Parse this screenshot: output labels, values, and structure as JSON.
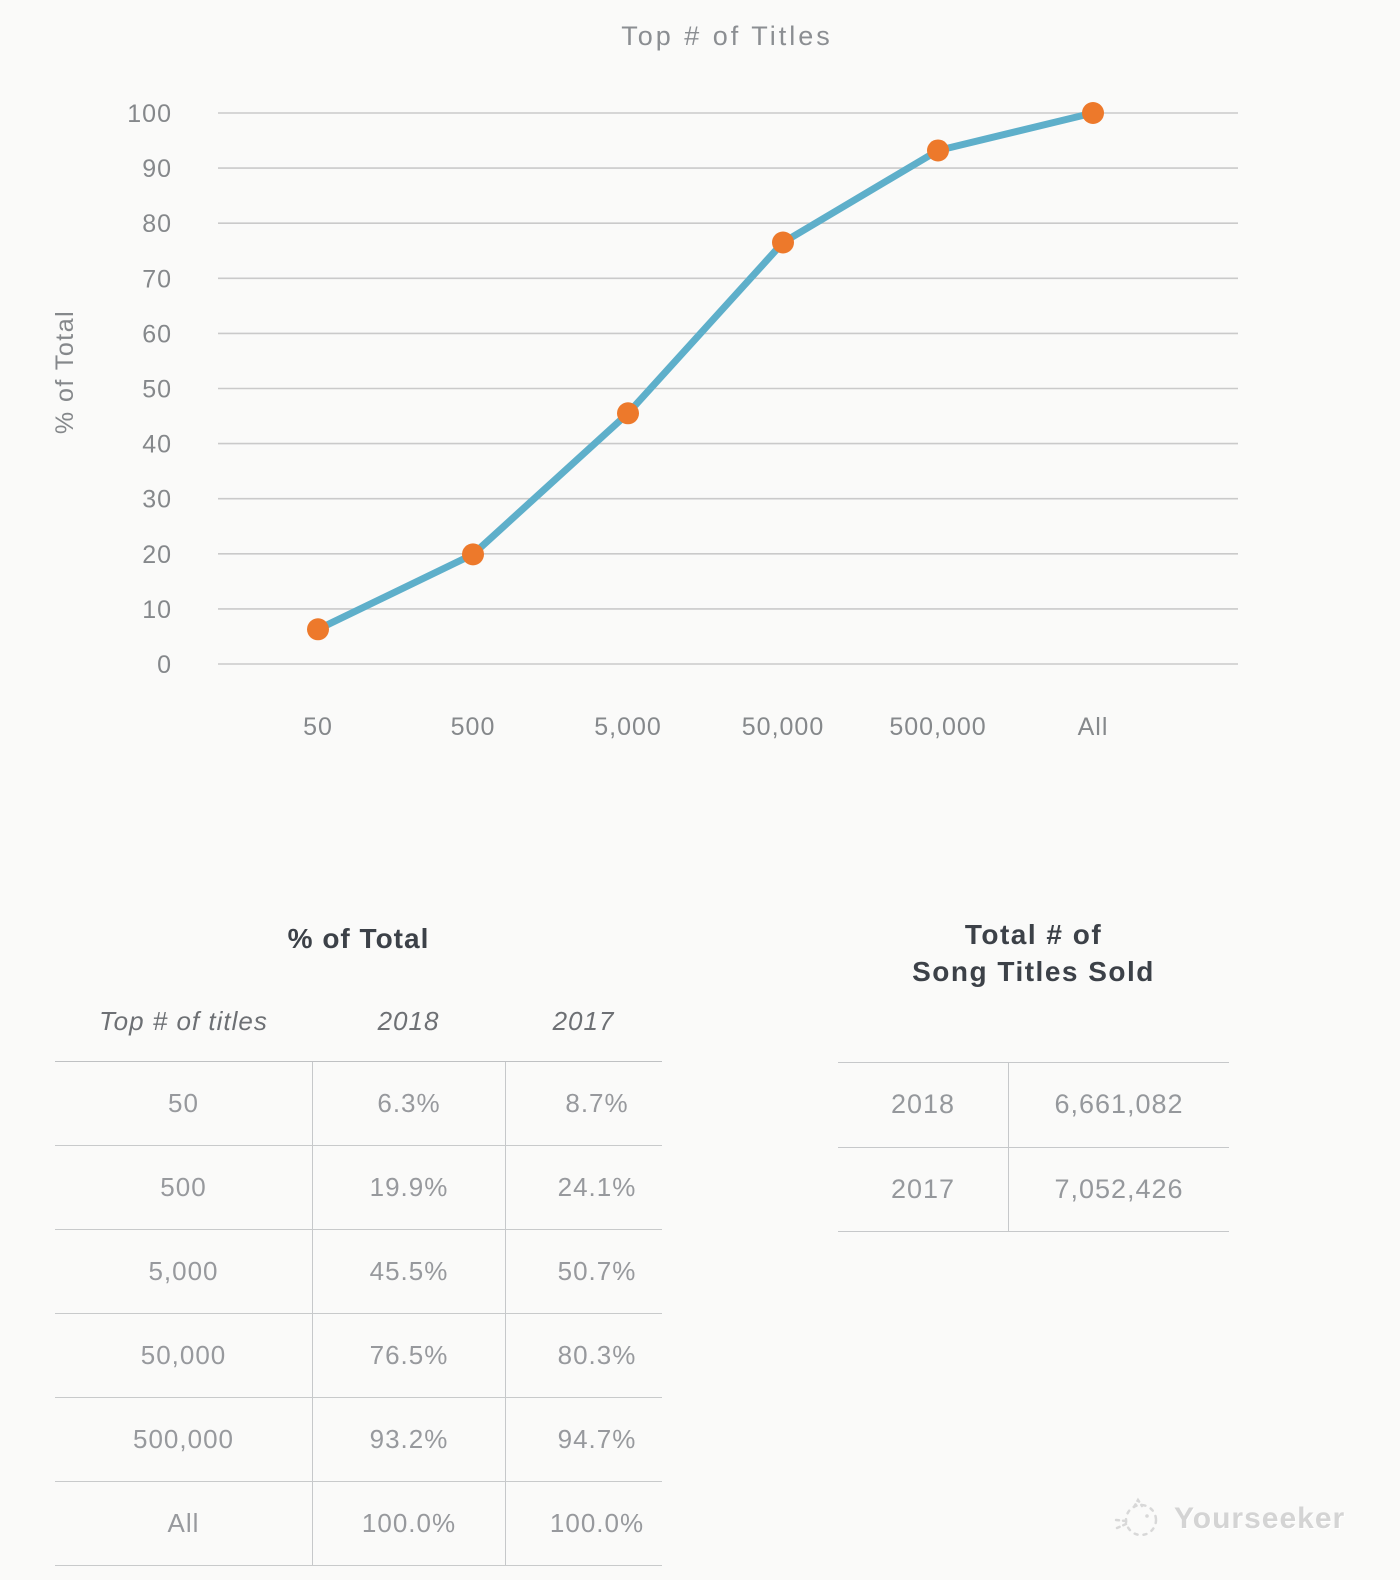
{
  "chart": {
    "title": "Top # of Titles",
    "ylabel": "% of Total",
    "colors": {
      "line": "#5eafca",
      "point": "#ed792b",
      "grid": "#cacaca",
      "axis_text": "#85888b",
      "title_text": "#8b8e92"
    }
  },
  "chart_data": {
    "type": "line",
    "title": "Top # of Titles",
    "categories": [
      "50",
      "500",
      "5,000",
      "50,000",
      "500,000",
      "All"
    ],
    "series": [
      {
        "name": "2018",
        "values": [
          6.3,
          19.9,
          45.5,
          76.5,
          93.2,
          100.0
        ]
      }
    ],
    "xlabel": "Top # of titles",
    "ylabel": "% of Total",
    "ylim": [
      0,
      100
    ],
    "yticks": [
      0,
      10,
      20,
      30,
      40,
      50,
      60,
      70,
      80,
      90,
      100
    ],
    "grid": "horizontal",
    "legend": "none"
  },
  "pct_table": {
    "title": "% of Total",
    "headers": [
      "Top # of titles",
      "2018",
      "2017"
    ],
    "rows": [
      [
        "50",
        "6.3%",
        "8.7%"
      ],
      [
        "500",
        "19.9%",
        "24.1%"
      ],
      [
        "5,000",
        "45.5%",
        "50.7%"
      ],
      [
        "50,000",
        "76.5%",
        "80.3%"
      ],
      [
        "500,000",
        "93.2%",
        "94.7%"
      ],
      [
        "All",
        "100.0%",
        "100.0%"
      ]
    ]
  },
  "totals_table": {
    "title_line1": "Total # of",
    "title_line2": "Song Titles Sold",
    "rows": [
      [
        "2018",
        "6,661,082"
      ],
      [
        "2017",
        "7,052,426"
      ]
    ]
  },
  "watermark": {
    "text": "Yourseeker"
  }
}
